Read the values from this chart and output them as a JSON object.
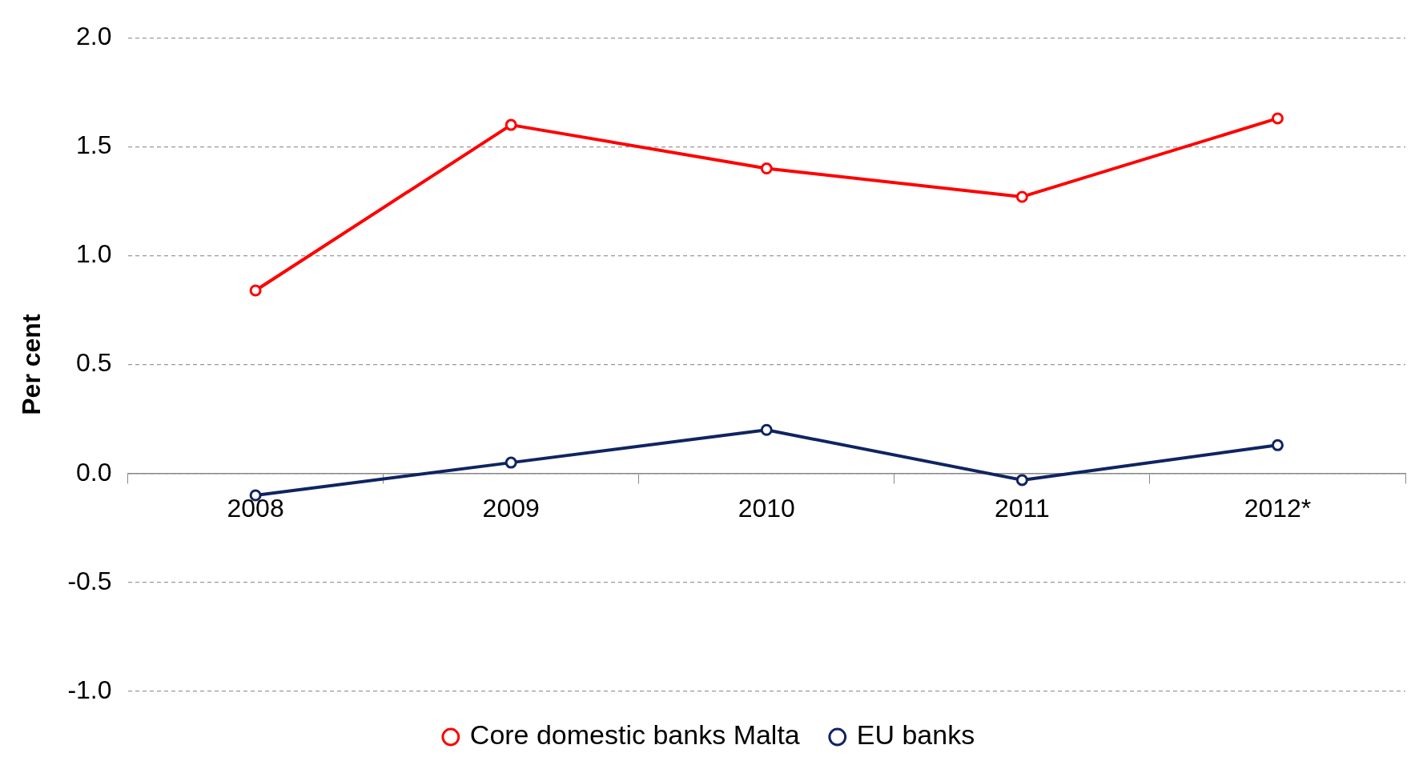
{
  "chart_data": {
    "type": "line",
    "ylabel": "Per cent",
    "categories": [
      "2008",
      "2009",
      "2010",
      "2011",
      "2012*"
    ],
    "series": [
      {
        "name": "Core domestic banks Malta",
        "color": "#ff0000",
        "values": [
          0.84,
          1.6,
          1.4,
          1.27,
          1.63
        ]
      },
      {
        "name": "EU banks",
        "color": "#0f2461",
        "values": [
          -0.1,
          0.05,
          0.2,
          -0.03,
          0.13
        ]
      }
    ],
    "ylim": [
      -1.0,
      2.0
    ],
    "yticks": [
      {
        "value": -1,
        "label": "-1.0"
      },
      {
        "value": -0.5,
        "label": "-0.5"
      },
      {
        "value": 0,
        "label": "0.0"
      },
      {
        "value": 0.5,
        "label": "0.5"
      },
      {
        "value": 1,
        "label": "1.0"
      },
      {
        "value": 1.5,
        "label": "1.5"
      },
      {
        "value": 2,
        "label": "2.0"
      }
    ],
    "grid": "y",
    "legend": "bottom",
    "marker": "circle",
    "line_style": "solid"
  }
}
